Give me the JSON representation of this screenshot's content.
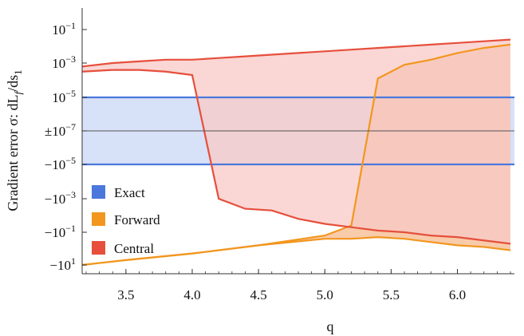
{
  "chart_data": {
    "type": "area",
    "title": "",
    "xlabel": "q",
    "ylabel": "Gradient error σ: dL",
    "ylabel_sub1": "f",
    "ylabel_mid": "/ds",
    "ylabel_sub2": "1",
    "xlim": [
      3.17,
      6.43
    ],
    "ylim": [
      -1.0,
      1.0
    ],
    "yscale": "symmetric-log",
    "grid": false,
    "reference_line_y_label": "±10",
    "reference_line_y_exp": "−7",
    "x_ticks": [
      3.5,
      4.0,
      4.5,
      5.0,
      5.5,
      6.0
    ],
    "x_tick_labels": [
      "3.5",
      "4.0",
      "4.5",
      "5.0",
      "5.5",
      "6.0"
    ],
    "y_ticks": [
      {
        "pos": 0.8,
        "base": "10",
        "exp": "−1"
      },
      {
        "pos": 0.6,
        "base": "10",
        "exp": "−3"
      },
      {
        "pos": 0.4,
        "base": "10",
        "exp": "−5"
      },
      {
        "pos": -0.4,
        "base": "−10",
        "exp": "−5"
      },
      {
        "pos": -0.6,
        "base": "−10",
        "exp": "−3"
      },
      {
        "pos": -0.8,
        "base": "−10",
        "exp": "−1"
      },
      {
        "pos": -1.0,
        "base": "−10",
        "exp": "1"
      }
    ],
    "legend_position": "lower-left",
    "series": [
      {
        "name": "Exact",
        "color": "#4a78dc",
        "fill": "#d7e1f7",
        "x": [
          3.17,
          6.43
        ],
        "upper": [
          0.4,
          0.4
        ],
        "lower": [
          -0.4,
          -0.4
        ]
      },
      {
        "name": "Forward",
        "color": "#f2961f",
        "fill": "#f5b98e",
        "fill_opacity": 0.75,
        "x": [
          3.17,
          3.5,
          4.0,
          4.5,
          5.0,
          5.2,
          5.4,
          5.6,
          5.8,
          6.0,
          6.2,
          6.4
        ],
        "upper": [
          -1.0,
          -0.97,
          -0.93,
          -0.88,
          -0.82,
          -0.76,
          0.51,
          0.59,
          0.62,
          0.66,
          0.69,
          0.71
        ],
        "lower": [
          -1.0,
          -0.97,
          -0.93,
          -0.88,
          -0.84,
          -0.84,
          -0.83,
          -0.84,
          -0.86,
          -0.88,
          -0.89,
          -0.91
        ]
      },
      {
        "name": "Central",
        "color": "#e64f3c",
        "fill": "#f8c9c5",
        "fill_opacity": 0.75,
        "x": [
          3.17,
          3.4,
          3.6,
          3.8,
          4.0,
          4.2,
          4.4,
          4.6,
          4.8,
          5.0,
          5.2,
          5.4,
          5.6,
          5.8,
          6.0,
          6.2,
          6.4
        ],
        "upper": [
          0.58,
          0.6,
          0.61,
          0.62,
          0.62,
          0.63,
          0.64,
          0.65,
          0.66,
          0.67,
          0.68,
          0.69,
          0.7,
          0.71,
          0.72,
          0.73,
          0.74
        ],
        "lower": [
          0.55,
          0.56,
          0.56,
          0.55,
          0.53,
          -0.6,
          -0.66,
          -0.67,
          -0.72,
          -0.75,
          -0.77,
          -0.79,
          -0.8,
          -0.82,
          -0.83,
          -0.85,
          -0.87
        ]
      }
    ]
  }
}
